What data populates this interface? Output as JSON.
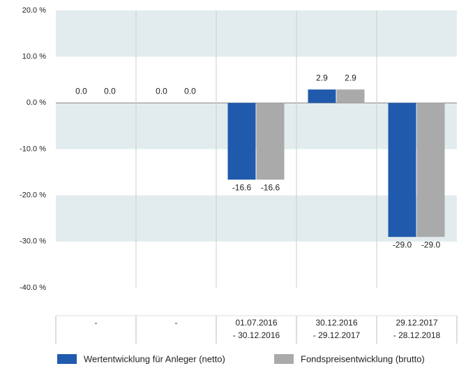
{
  "chart_data": {
    "type": "bar",
    "categories": [
      [
        "-"
      ],
      [
        "-"
      ],
      [
        "01.07.2016",
        "- 30.12.2016"
      ],
      [
        "30.12.2016",
        "- 29.12.2017"
      ],
      [
        "29.12.2017",
        "- 28.12.2018"
      ]
    ],
    "series": [
      {
        "name": "Wertentwicklung für Anleger (netto)",
        "color": "#1f5aad",
        "values": [
          0.0,
          0.0,
          -16.6,
          2.9,
          -29.0
        ],
        "value_labels": [
          "0.0",
          "0.0",
          "-16.6",
          "2.9",
          "-29.0"
        ]
      },
      {
        "name": "Fondspreisentwicklung (brutto)",
        "color": "#aaaaaa",
        "values": [
          0.0,
          0.0,
          -16.6,
          2.9,
          -29.0
        ],
        "value_labels": [
          "0.0",
          "0.0",
          "-16.6",
          "2.9",
          "-29.0"
        ]
      }
    ],
    "ylim": [
      -40,
      20
    ],
    "yticks": [
      {
        "value": -40,
        "label": "-40.0 %"
      },
      {
        "value": -30,
        "label": "-30.0 %"
      },
      {
        "value": -20,
        "label": "-20.0 %"
      },
      {
        "value": -10,
        "label": "-10.0 %"
      },
      {
        "value": 0,
        "label": "0.0 %"
      },
      {
        "value": 10,
        "label": "10.0 %"
      },
      {
        "value": 20,
        "label": "20.0 %"
      }
    ],
    "grid": true,
    "legend": "bottom"
  }
}
